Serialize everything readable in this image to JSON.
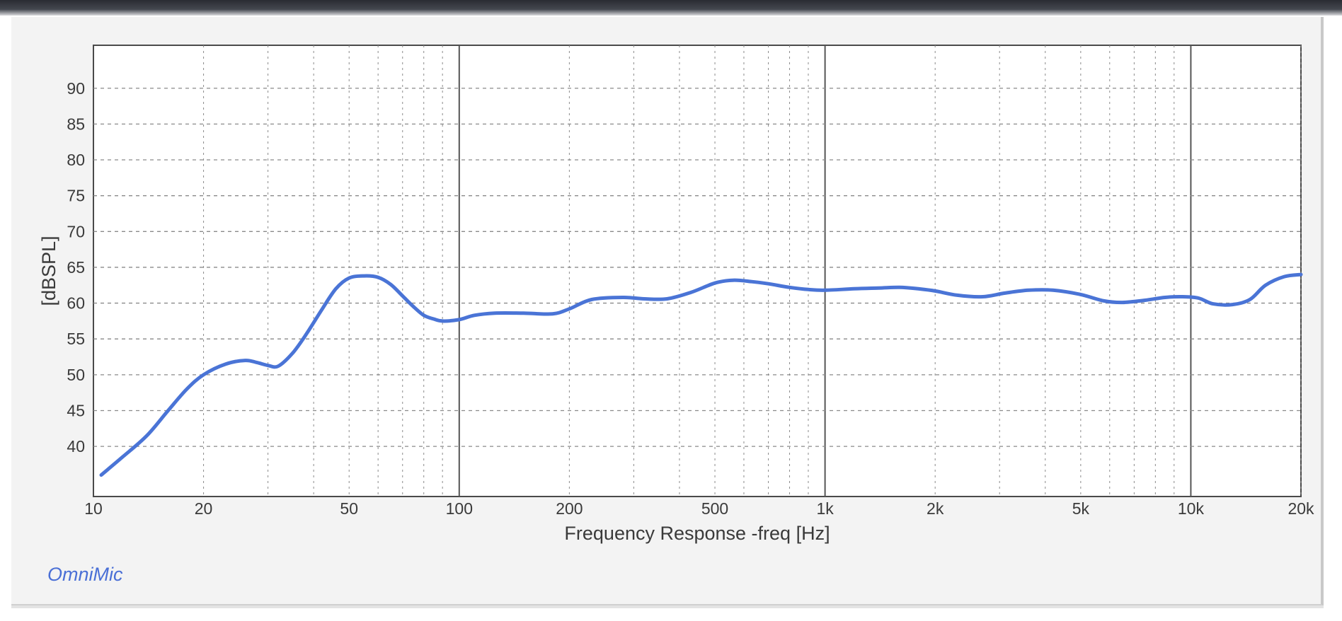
{
  "window": {
    "brand_label": "OmniMic"
  },
  "chart_data": {
    "type": "line",
    "title": "",
    "xlabel": "Frequency Response -freq [Hz]",
    "ylabel": "[dBSPL]",
    "x_scale": "log",
    "xlim": [
      10,
      20000
    ],
    "ylim": [
      33,
      96
    ],
    "grid": true,
    "x_ticks": [
      {
        "value": 10,
        "label": "10"
      },
      {
        "value": 20,
        "label": "20"
      },
      {
        "value": 50,
        "label": "50"
      },
      {
        "value": 100,
        "label": "100"
      },
      {
        "value": 200,
        "label": "200"
      },
      {
        "value": 500,
        "label": "500"
      },
      {
        "value": 1000,
        "label": "1k"
      },
      {
        "value": 2000,
        "label": "2k"
      },
      {
        "value": 5000,
        "label": "5k"
      },
      {
        "value": 10000,
        "label": "10k"
      },
      {
        "value": 20000,
        "label": "20k"
      }
    ],
    "y_ticks": [
      {
        "value": 40,
        "label": "40"
      },
      {
        "value": 45,
        "label": "45"
      },
      {
        "value": 50,
        "label": "50"
      },
      {
        "value": 55,
        "label": "55"
      },
      {
        "value": 60,
        "label": "60"
      },
      {
        "value": 65,
        "label": "65"
      },
      {
        "value": 70,
        "label": "70"
      },
      {
        "value": 75,
        "label": "75"
      },
      {
        "value": 80,
        "label": "80"
      },
      {
        "value": 85,
        "label": "85"
      },
      {
        "value": 90,
        "label": "90"
      }
    ],
    "colors": {
      "series": "#4a74d6",
      "grid": "#8a8a8a",
      "decade_line": "#555555",
      "text": "#3a3a3a"
    },
    "series": [
      {
        "x": [
          10.5,
          12,
          14,
          16,
          18,
          20,
          23,
          26,
          28,
          30,
          32,
          35,
          38,
          42,
          46,
          50,
          55,
          60,
          65,
          70,
          75,
          80,
          85,
          90,
          100,
          110,
          125,
          150,
          180,
          200,
          230,
          280,
          320,
          370,
          430,
          500,
          560,
          630,
          700,
          800,
          900,
          1000,
          1200,
          1400,
          1600,
          1800,
          2000,
          2300,
          2700,
          3100,
          3600,
          4200,
          5000,
          5800,
          6500,
          7500,
          8500,
          9500,
          10500,
          11500,
          13000,
          14500,
          16000,
          18000,
          20000
        ],
        "y": [
          36.0,
          38.5,
          41.5,
          45.0,
          48.0,
          50.0,
          51.5,
          52.0,
          51.7,
          51.3,
          51.2,
          53.0,
          55.5,
          59.0,
          62.0,
          63.5,
          63.8,
          63.6,
          62.6,
          61.0,
          59.5,
          58.3,
          57.8,
          57.5,
          57.7,
          58.3,
          58.6,
          58.6,
          58.5,
          59.2,
          60.5,
          60.8,
          60.6,
          60.6,
          61.5,
          62.8,
          63.2,
          63.0,
          62.7,
          62.2,
          61.9,
          61.8,
          62.0,
          62.1,
          62.2,
          62.0,
          61.7,
          61.1,
          60.9,
          61.4,
          61.8,
          61.8,
          61.2,
          60.3,
          60.1,
          60.4,
          60.8,
          60.9,
          60.7,
          59.9,
          59.8,
          60.5,
          62.5,
          63.7,
          64.0
        ]
      }
    ]
  }
}
